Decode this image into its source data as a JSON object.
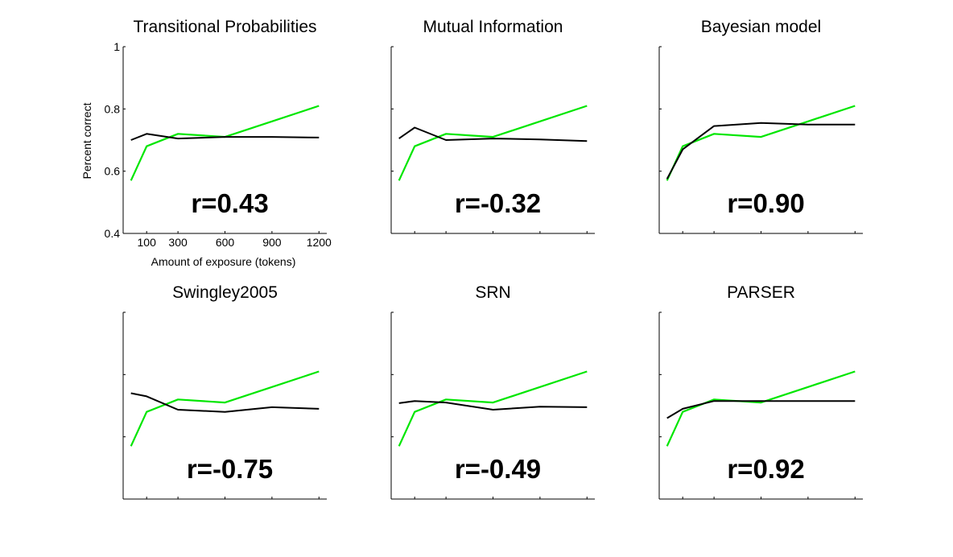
{
  "chart_data": {
    "type": "line",
    "x": [
      0,
      100,
      300,
      600,
      900,
      1200
    ],
    "xticks": [
      "100",
      "300",
      "600",
      "900",
      "1200"
    ],
    "xtick_values": [
      100,
      300,
      600,
      900,
      1200
    ],
    "yticks": [
      "0.4",
      "0.6",
      "0.8",
      "1"
    ],
    "ytick_values": [
      0.4,
      0.6,
      0.8,
      1
    ],
    "xlabel": "Amount of exposure (tokens)",
    "ylabel": "Percent correct",
    "xlim": [
      -50,
      1250
    ],
    "ylim": [
      0.4,
      1.0
    ],
    "grid": false,
    "colors": {
      "human": "#00e600",
      "model": "#000000"
    },
    "human": [
      0.57,
      0.68,
      0.72,
      0.71,
      0.76,
      0.81
    ],
    "panels": [
      {
        "title": "Transitional Probabilities",
        "r": "r=0.43",
        "model": [
          0.7,
          0.72,
          0.705,
          0.71,
          0.71,
          0.708
        ]
      },
      {
        "title": "Mutual Information",
        "r": "r=-0.32",
        "model": [
          0.705,
          0.74,
          0.7,
          0.705,
          0.702,
          0.697
        ]
      },
      {
        "title": "Bayesian model",
        "r": "r=0.90",
        "model": [
          0.575,
          0.67,
          0.745,
          0.755,
          0.75,
          0.75
        ]
      },
      {
        "title": "Swingley2005",
        "r": "r=-0.75",
        "model": [
          0.74,
          0.73,
          0.687,
          0.68,
          0.695,
          0.69
        ]
      },
      {
        "title": "SRN",
        "r": "r=-0.49",
        "model": [
          0.708,
          0.715,
          0.71,
          0.687,
          0.697,
          0.695
        ]
      },
      {
        "title": "PARSER",
        "r": "r=0.92",
        "model": [
          0.66,
          0.69,
          0.715,
          0.715,
          0.715,
          0.715
        ]
      }
    ]
  }
}
